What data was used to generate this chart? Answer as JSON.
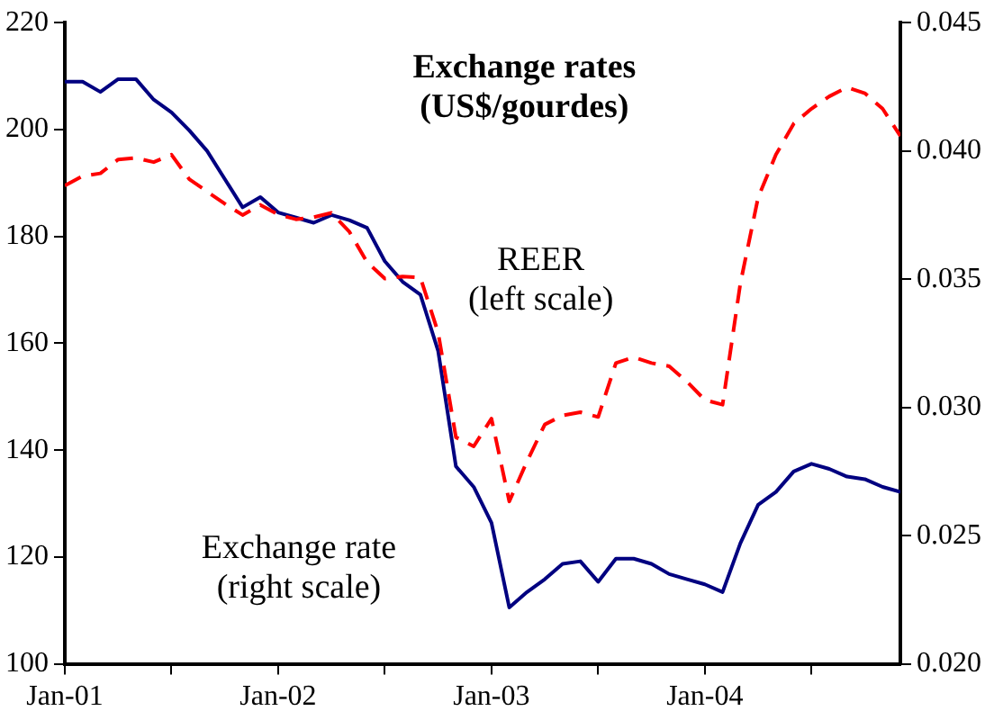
{
  "chart_data": {
    "type": "line",
    "title": "Exchange rates\n(US$/gourdes)",
    "x": [
      "2001-01",
      "2001-02",
      "2001-03",
      "2001-04",
      "2001-05",
      "2001-06",
      "2001-07",
      "2001-08",
      "2001-09",
      "2001-10",
      "2001-11",
      "2001-12",
      "2002-01",
      "2002-02",
      "2002-03",
      "2002-04",
      "2002-05",
      "2002-06",
      "2002-07",
      "2002-08",
      "2002-09",
      "2002-10",
      "2002-11",
      "2002-12",
      "2003-01",
      "2003-02",
      "2003-03",
      "2003-04",
      "2003-05",
      "2003-06",
      "2003-07",
      "2003-08",
      "2003-09",
      "2003-10",
      "2003-11",
      "2003-12",
      "2004-01",
      "2004-02",
      "2004-03",
      "2004-04",
      "2004-05",
      "2004-06",
      "2004-07",
      "2004-08",
      "2004-09",
      "2004-10",
      "2004-11",
      "2004-12"
    ],
    "series": [
      {
        "name": "REER\n(left scale)",
        "color": "#ff0000",
        "line_style": "dashed",
        "values": [
          189.5,
          191.3,
          191.8,
          194.4,
          194.7,
          193.9,
          195.3,
          190.7,
          188.4,
          186.1,
          184.0,
          185.9,
          184.1,
          183.2,
          183.6,
          184.4,
          180.9,
          175.2,
          172.1,
          172.5,
          172.3,
          162,
          142.4,
          140.7,
          145.9,
          130.4,
          137.9,
          144.8,
          146.5,
          147.1,
          146.2,
          156.3,
          157.4,
          156.3,
          155.7,
          152.8,
          149.4,
          148.5,
          171.2,
          187.3,
          195.3,
          201.1,
          203.9,
          206.2,
          207.9,
          206.8,
          203.9,
          198.8
        ]
      },
      {
        "name": "Exchange rate\n(right scale)",
        "color": "#000080",
        "line_style": "solid",
        "axis": "y2",
        "values": [
          0.0427,
          0.0427,
          0.0423,
          0.0428,
          0.0428,
          0.042,
          0.0415,
          0.0408,
          0.04,
          0.0389,
          0.0378,
          0.0382,
          0.0376,
          0.0374,
          0.0372,
          0.0375,
          0.0373,
          0.037,
          0.0357,
          0.0349,
          0.0344,
          0.0322,
          0.0277,
          0.0269,
          0.0255,
          0.0222,
          0.0228,
          0.0233,
          0.0239,
          0.024,
          0.0232,
          0.0241,
          0.0241,
          0.0239,
          0.0235,
          0.0233,
          0.0231,
          0.0228,
          0.0247,
          0.0262,
          0.0267,
          0.0275,
          0.0278,
          0.0276,
          0.0273,
          0.0272,
          0.0269,
          0.0267
        ]
      }
    ],
    "xlim": [
      "2001-01",
      "2004-12"
    ],
    "xticks": [
      {
        "value": "2001-01",
        "label": "Jan-01"
      },
      {
        "value": "2001-07",
        "label": null
      },
      {
        "value": "2002-01",
        "label": "Jan-02"
      },
      {
        "value": "2002-07",
        "label": null
      },
      {
        "value": "2003-01",
        "label": "Jan-03"
      },
      {
        "value": "2003-07",
        "label": null
      },
      {
        "value": "2004-01",
        "label": "Jan-04"
      },
      {
        "value": "2004-07",
        "label": null
      }
    ],
    "ylim": [
      100,
      220
    ],
    "yticks": [
      100,
      120,
      140,
      160,
      180,
      200,
      220
    ],
    "y2lim": [
      0.02,
      0.045
    ],
    "y2ticks": [
      {
        "value": 0.02,
        "label": "0.020"
      },
      {
        "value": 0.025,
        "label": "0.025"
      },
      {
        "value": 0.03,
        "label": "0.030"
      },
      {
        "value": 0.035,
        "label": "0.035"
      },
      {
        "value": 0.04,
        "label": "0.040"
      },
      {
        "value": 0.045,
        "label": "0.045"
      }
    ],
    "grid": false,
    "legend": false,
    "marker": "none"
  }
}
